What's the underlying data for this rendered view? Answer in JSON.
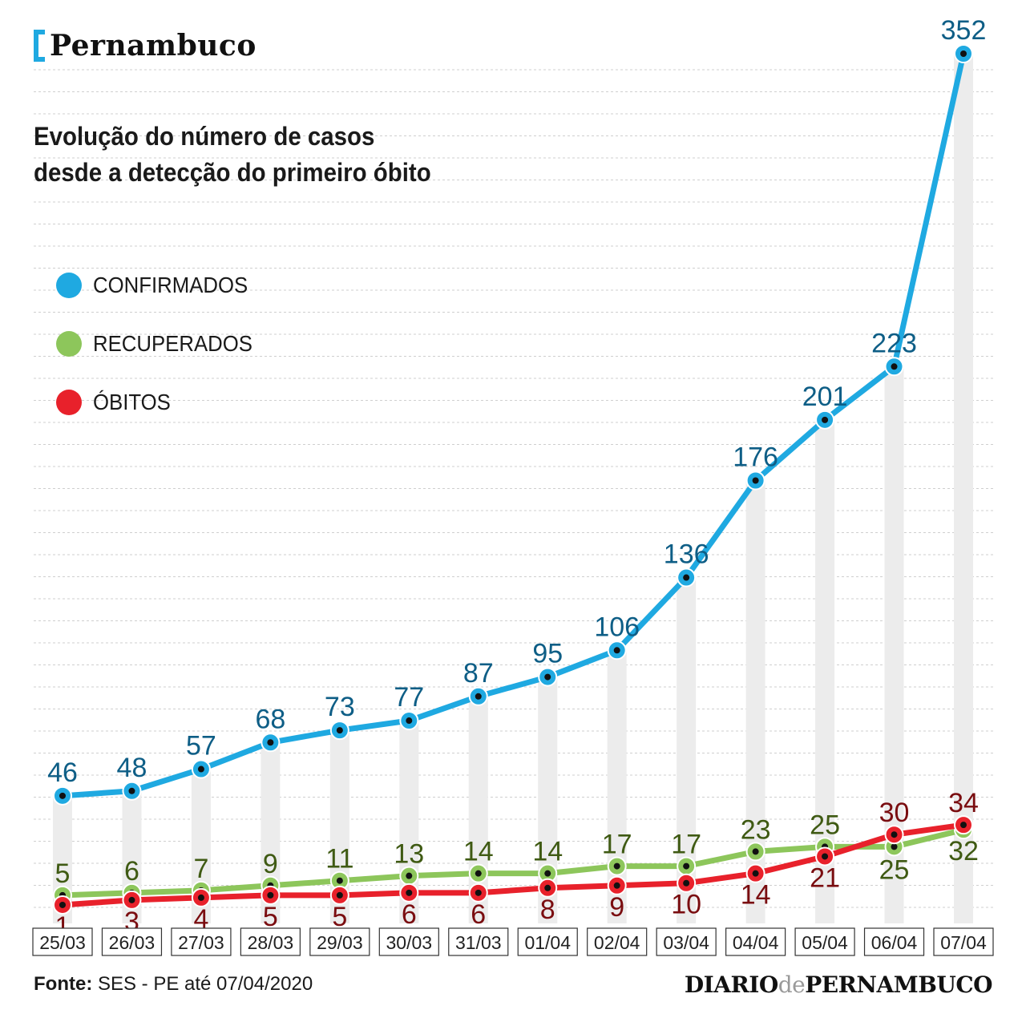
{
  "header": {
    "section": "Pernambuco",
    "subtitle_line1": "Evolução do número de casos",
    "subtitle_line2": "desde a detecção do primeiro óbito"
  },
  "legend": [
    {
      "label": "CONFIRMADOS",
      "color": "#1fa9e1"
    },
    {
      "label": "RECUPERADOS",
      "color": "#8dc65b"
    },
    {
      "label": "ÓBITOS",
      "color": "#e8212b"
    }
  ],
  "footer": {
    "source_label": "Fonte:",
    "source_text": "SES - PE até 07/04/2020",
    "brand_left": "DIARIO",
    "brand_mid": "de",
    "brand_right": "PERNAMBUCO"
  },
  "chart_data": {
    "type": "line",
    "categories": [
      "25/03",
      "26/03",
      "27/03",
      "28/03",
      "29/03",
      "30/03",
      "31/03",
      "01/04",
      "02/04",
      "03/04",
      "04/04",
      "05/04",
      "06/04",
      "07/04"
    ],
    "series": [
      {
        "name": "CONFIRMADOS",
        "color": "#1fa9e1",
        "label_color": "#0e5e86",
        "values": [
          46,
          48,
          57,
          68,
          73,
          77,
          87,
          95,
          106,
          136,
          176,
          201,
          223,
          352
        ]
      },
      {
        "name": "RECUPERADOS",
        "color": "#8dc65b",
        "label_color": "#3f5a13",
        "values": [
          5,
          6,
          7,
          9,
          11,
          13,
          14,
          14,
          17,
          17,
          23,
          25,
          25,
          32
        ]
      },
      {
        "name": "ÓBITOS",
        "color": "#e8212b",
        "label_color": "#7a0d10",
        "values": [
          1,
          3,
          4,
          5,
          5,
          6,
          6,
          8,
          9,
          10,
          14,
          21,
          30,
          34
        ]
      }
    ],
    "ylim": [
      0,
      352
    ],
    "grid": true
  }
}
